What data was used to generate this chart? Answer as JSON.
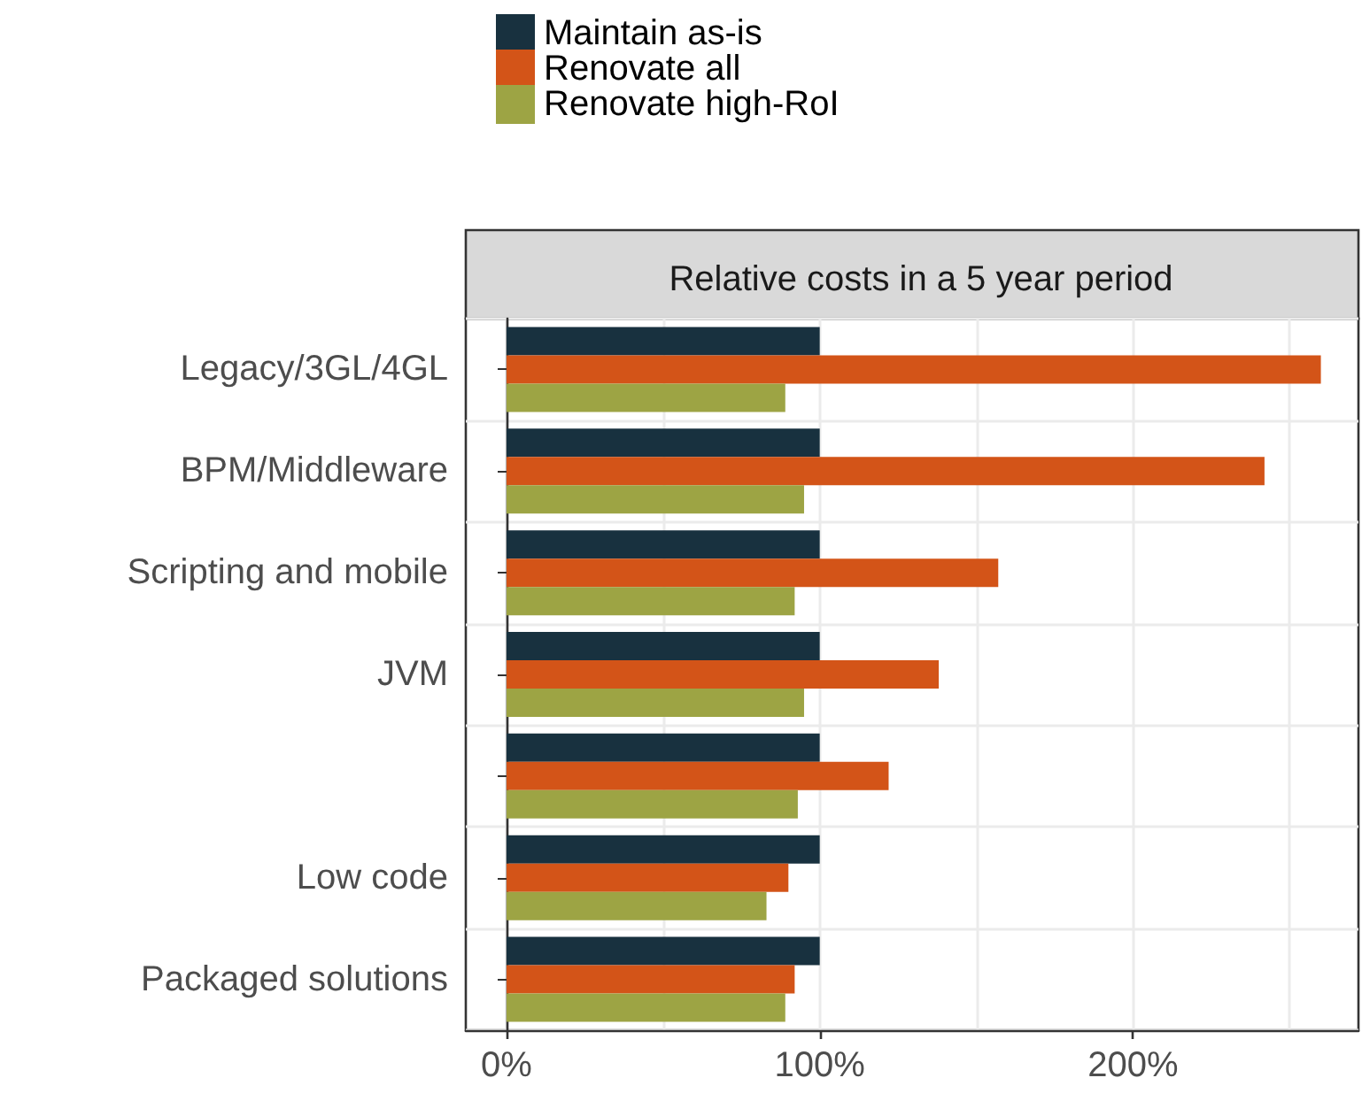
{
  "chart_data": {
    "type": "bar",
    "orientation": "horizontal",
    "title": "Relative costs in a 5 year period",
    "categories": [
      "Legacy/3GL/4GL",
      "BPM/Middleware",
      "Scripting and mobile",
      "JVM",
      null,
      "Low code",
      "Packaged solutions"
    ],
    "series": [
      {
        "name": "Maintain as-is",
        "color": "#18313f",
        "values": [
          100,
          100,
          100,
          100,
          100,
          100,
          100
        ]
      },
      {
        "name": "Renovate all",
        "color": "#d35418",
        "values": [
          260,
          242,
          157,
          138,
          122,
          90,
          92
        ]
      },
      {
        "name": "Renovate high-RoI",
        "color": "#9da444",
        "values": [
          89,
          95,
          92,
          95,
          93,
          83,
          89
        ]
      }
    ],
    "xlim": [
      -13,
      272
    ],
    "xticks": [
      {
        "value": 0,
        "label": "0%"
      },
      {
        "value": 50,
        "label": null
      },
      {
        "value": 100,
        "label": "100%"
      },
      {
        "value": 150,
        "label": null
      },
      {
        "value": 200,
        "label": "200%"
      },
      {
        "value": 250,
        "label": null
      }
    ],
    "grid": true,
    "legend": "top"
  }
}
